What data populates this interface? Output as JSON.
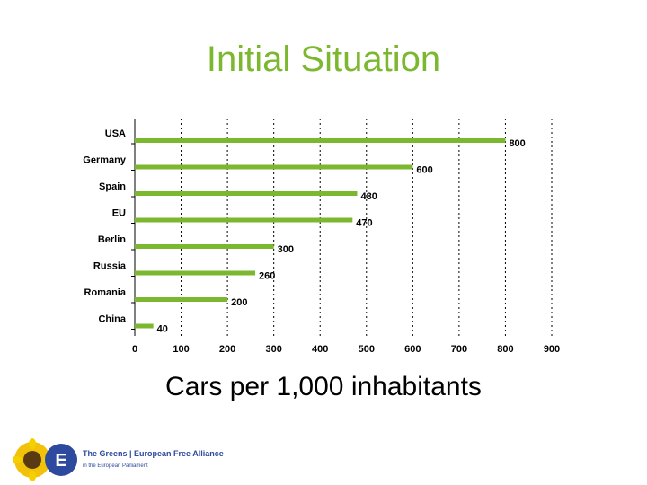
{
  "slide": {
    "title": "Initial Situation",
    "caption": "Cars per 1,000 inhabitants",
    "logo_text": "The Greens | European Free Alliance",
    "logo_subtext": "in the European Parliament"
  },
  "colors": {
    "title": "#7cb82f",
    "bar": "#7cb82f",
    "gridline": "#000000"
  },
  "chart_data": {
    "type": "bar",
    "orientation": "horizontal",
    "categories": [
      "USA",
      "Germany",
      "Spain",
      "EU",
      "Berlin",
      "Russia",
      "Romania",
      "China"
    ],
    "values": [
      800,
      600,
      480,
      470,
      300,
      260,
      200,
      40
    ],
    "value_labels": [
      "800",
      "600",
      "480",
      "470",
      "300",
      "260",
      "200",
      "40"
    ],
    "xlim": [
      0,
      900
    ],
    "xticks": [
      0,
      100,
      200,
      300,
      400,
      500,
      600,
      700,
      800,
      900
    ],
    "grid": "vertical dotted",
    "title": "",
    "xlabel": "",
    "ylabel": ""
  }
}
